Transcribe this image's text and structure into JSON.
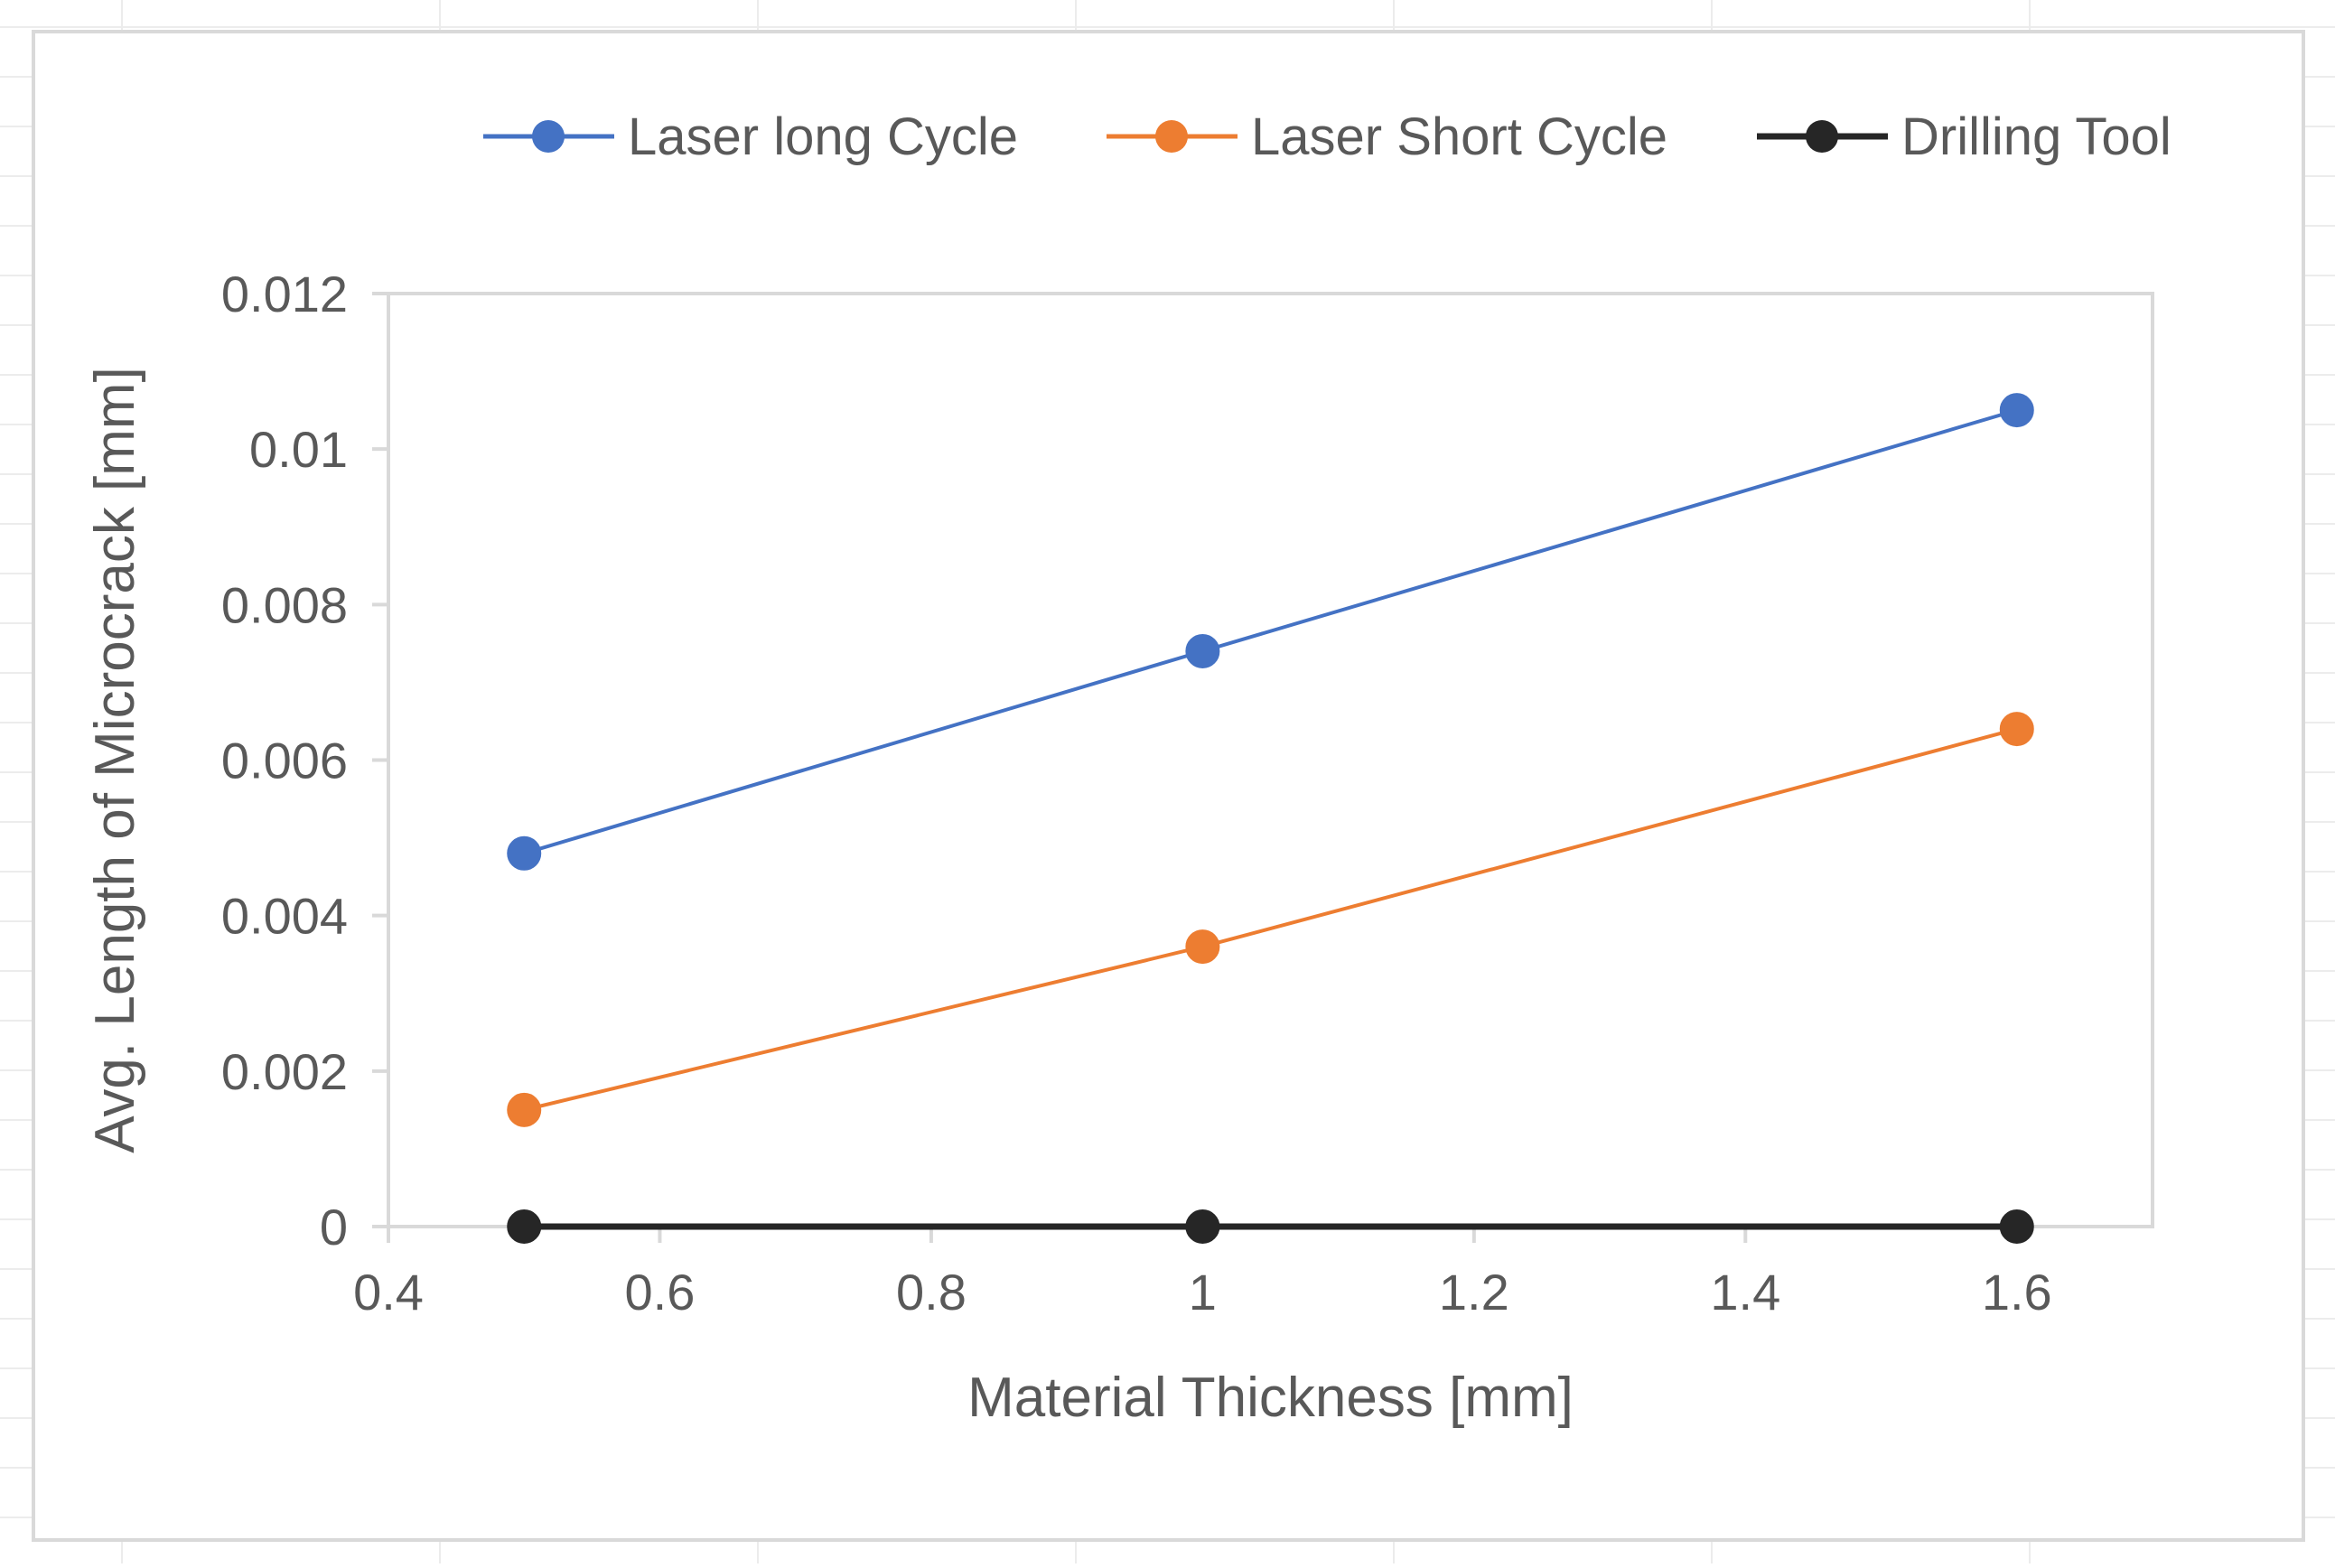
{
  "chart_data": {
    "type": "line",
    "title": "",
    "xlabel": "Material Thickness [mm]",
    "ylabel": "Avg. Length of Microcrack [mm]",
    "xlim": [
      0.4,
      1.7
    ],
    "ylim": [
      0,
      0.012
    ],
    "x_ticks": [
      0.4,
      0.6,
      0.8,
      1.0,
      1.2,
      1.4,
      1.6
    ],
    "x_tick_labels": [
      "0.4",
      "0.6",
      "0.8",
      "1",
      "1.2",
      "1.4",
      "1.6"
    ],
    "y_ticks": [
      0,
      0.002,
      0.004,
      0.006,
      0.008,
      0.01,
      0.012
    ],
    "y_tick_labels": [
      "0",
      "0.002",
      "0.004",
      "0.006",
      "0.008",
      "0.01",
      "0.012"
    ],
    "grid": false,
    "legend_position": "top",
    "x": [
      0.5,
      1.0,
      1.6
    ],
    "series": [
      {
        "name": "Laser long Cycle",
        "color": "#4472C4",
        "values": [
          0.0048,
          0.0074,
          0.0105
        ]
      },
      {
        "name": "Laser Short Cycle",
        "color": "#ED7D31",
        "values": [
          0.0015,
          0.0036,
          0.0064
        ]
      },
      {
        "name": "Drilling Tool",
        "color": "#262626",
        "values": [
          0,
          0,
          0
        ]
      }
    ]
  }
}
